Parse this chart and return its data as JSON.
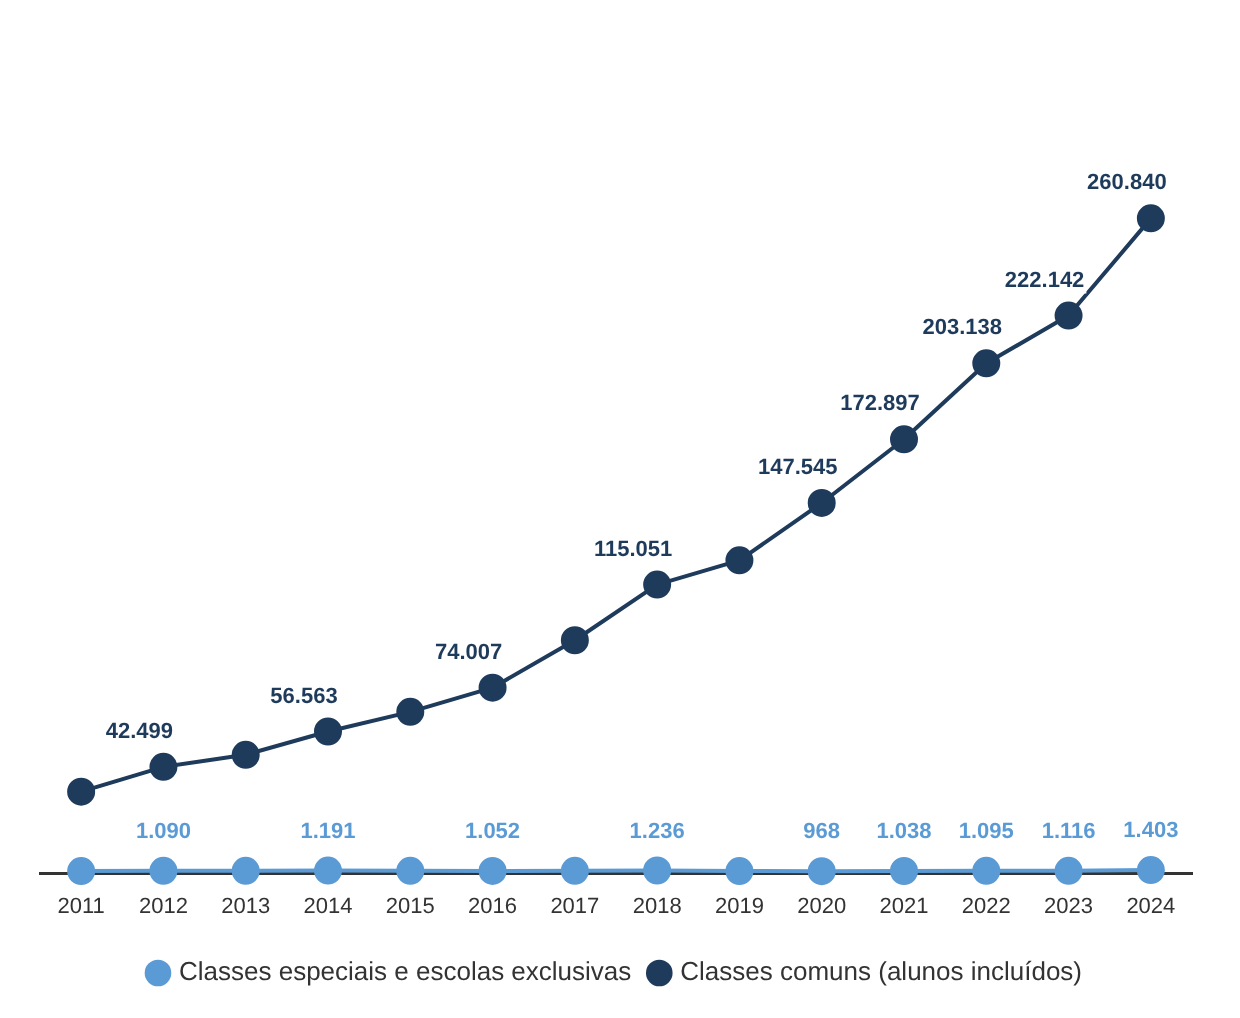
{
  "chart_data": {
    "type": "line",
    "categories": [
      "2011",
      "2012",
      "2013",
      "2014",
      "2015",
      "2016",
      "2017",
      "2018",
      "2019",
      "2020",
      "2021",
      "2022",
      "2023",
      "2024"
    ],
    "series": [
      {
        "name": "Classes especiais e escolas exclusivas",
        "color": "#5b9bd5",
        "values": [
          1000,
          1090,
          1100,
          1191,
          1100,
          1052,
          1100,
          1236,
          1000,
          968,
          1038,
          1095,
          1116,
          1403
        ],
        "value_labels": [
          null,
          "1.090",
          null,
          "1.191",
          null,
          "1.052",
          null,
          "1.236",
          null,
          "968",
          "1.038",
          "1.095",
          "1.116",
          "1.403"
        ]
      },
      {
        "name": "Classes comuns (alunos incluídos)",
        "color": "#1f3b5c",
        "values": [
          32600,
          42499,
          47300,
          56563,
          64400,
          74007,
          92900,
          115051,
          124700,
          147545,
          172897,
          203138,
          222142,
          260840
        ],
        "value_labels": [
          null,
          "42.499",
          null,
          "56.563",
          null,
          "74.007",
          null,
          "115.051",
          null,
          "147.545",
          "172.897",
          "203.138",
          "222.142",
          "260.840"
        ]
      }
    ],
    "tick_labels": "x",
    "grid": false,
    "legend": "bottom",
    "marker": "circle",
    "line_style": "solid"
  }
}
